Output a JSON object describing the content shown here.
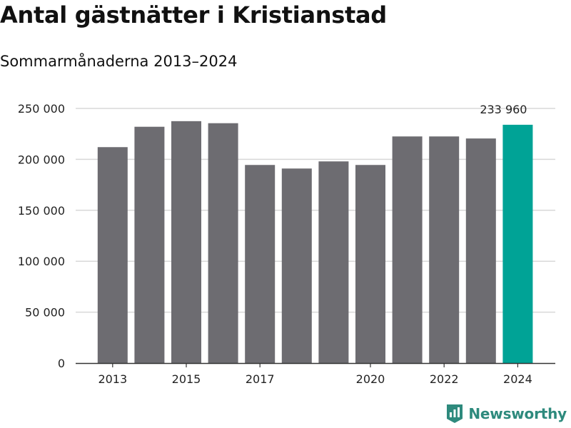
{
  "header": {
    "title": "Antal gästnätter i Kristianstad",
    "subtitle": "Sommarmånaderna 2013–2024"
  },
  "brand": {
    "name": "Newsworthy"
  },
  "colors": {
    "bar": "#6d6c71",
    "highlight": "#00a396",
    "grid": "#d8d8d8",
    "axis": "#333333",
    "brand": "#2e8a7d"
  },
  "chart_data": {
    "type": "bar",
    "title": "Antal gästnätter i Kristianstad",
    "subtitle": "Sommarmånaderna 2013–2024",
    "categories": [
      "2013",
      "2014",
      "2015",
      "2016",
      "2017",
      "2018",
      "2019",
      "2020",
      "2021",
      "2022",
      "2023",
      "2024"
    ],
    "values": [
      212000,
      232000,
      237500,
      235500,
      194500,
      191000,
      198000,
      194500,
      222500,
      222500,
      220500,
      233960
    ],
    "highlight_index": 11,
    "data_labels": [
      {
        "category": "2024",
        "text": "233 960"
      }
    ],
    "x_tick_labels": [
      "2013",
      "2015",
      "2017",
      "2020",
      "2022",
      "2024"
    ],
    "y_ticks": [
      0,
      50000,
      100000,
      150000,
      200000,
      250000
    ],
    "y_tick_labels": [
      "0",
      "50 000",
      "100 000",
      "150 000",
      "200 000",
      "250 000"
    ],
    "ylim": [
      0,
      250000
    ],
    "grid": true,
    "xlabel": "",
    "ylabel": ""
  }
}
